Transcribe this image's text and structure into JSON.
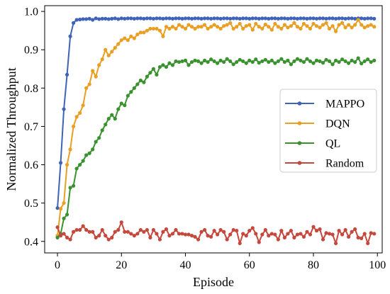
{
  "chart_data": {
    "type": "line",
    "title": "",
    "xlabel": "Episode",
    "ylabel": "Normalized Throughput",
    "xlim": [
      -4,
      101.5
    ],
    "ylim": [
      0.37,
      1.015
    ],
    "xticks": [
      0,
      20,
      40,
      60,
      80,
      100
    ],
    "yticks": [
      0.4,
      0.5,
      0.6,
      0.7,
      0.8,
      0.9,
      1.0
    ],
    "ytick_labels": [
      "0.4",
      "0.5",
      "0.6",
      "0.7",
      "0.8",
      "0.9",
      "1.0"
    ],
    "grid": false,
    "legend_position": "center-right",
    "x": [
      0,
      1,
      2,
      3,
      4,
      5,
      6,
      7,
      8,
      9,
      10,
      11,
      12,
      13,
      14,
      15,
      16,
      17,
      18,
      19,
      20,
      21,
      22,
      23,
      24,
      25,
      26,
      27,
      28,
      29,
      30,
      31,
      32,
      33,
      34,
      35,
      36,
      37,
      38,
      39,
      40,
      41,
      42,
      43,
      44,
      45,
      46,
      47,
      48,
      49,
      50,
      51,
      52,
      53,
      54,
      55,
      56,
      57,
      58,
      59,
      60,
      61,
      62,
      63,
      64,
      65,
      66,
      67,
      68,
      69,
      70,
      71,
      72,
      73,
      74,
      75,
      76,
      77,
      78,
      79,
      80,
      81,
      82,
      83,
      84,
      85,
      86,
      87,
      88,
      89,
      90,
      91,
      92,
      93,
      94,
      95,
      96,
      97,
      98,
      99
    ],
    "series": [
      {
        "name": "MAPPO",
        "color": "#3f63b8",
        "values": [
          0.487,
          0.605,
          0.745,
          0.835,
          0.935,
          0.97,
          0.978,
          0.979,
          0.98,
          0.98,
          0.981,
          0.978,
          0.982,
          0.98,
          0.981,
          0.981,
          0.98,
          0.981,
          0.982,
          0.98,
          0.982,
          0.981,
          0.982,
          0.982,
          0.981,
          0.982,
          0.982,
          0.981,
          0.982,
          0.982,
          0.981,
          0.982,
          0.982,
          0.981,
          0.982,
          0.982,
          0.981,
          0.982,
          0.982,
          0.981,
          0.982,
          0.982,
          0.981,
          0.982,
          0.982,
          0.981,
          0.982,
          0.982,
          0.981,
          0.982,
          0.982,
          0.981,
          0.982,
          0.982,
          0.981,
          0.982,
          0.982,
          0.981,
          0.982,
          0.982,
          0.981,
          0.982,
          0.982,
          0.981,
          0.982,
          0.982,
          0.981,
          0.982,
          0.982,
          0.981,
          0.982,
          0.982,
          0.981,
          0.982,
          0.982,
          0.981,
          0.982,
          0.982,
          0.981,
          0.982,
          0.982,
          0.981,
          0.982,
          0.982,
          0.981,
          0.982,
          0.982,
          0.981,
          0.982,
          0.982,
          0.981,
          0.982,
          0.982,
          0.981,
          0.982,
          0.982,
          0.981,
          0.982,
          0.982,
          0.981
        ]
      },
      {
        "name": "DQN",
        "color": "#e89f24",
        "values": [
          0.415,
          0.485,
          0.5,
          0.6,
          0.64,
          0.7,
          0.725,
          0.735,
          0.755,
          0.8,
          0.81,
          0.845,
          0.83,
          0.86,
          0.875,
          0.9,
          0.885,
          0.895,
          0.905,
          0.915,
          0.925,
          0.93,
          0.925,
          0.935,
          0.93,
          0.94,
          0.945,
          0.945,
          0.95,
          0.955,
          0.955,
          0.955,
          0.95,
          0.935,
          0.96,
          0.955,
          0.96,
          0.955,
          0.965,
          0.96,
          0.955,
          0.965,
          0.96,
          0.955,
          0.96,
          0.96,
          0.965,
          0.955,
          0.96,
          0.965,
          0.96,
          0.955,
          0.962,
          0.965,
          0.97,
          0.955,
          0.96,
          0.968,
          0.955,
          0.962,
          0.965,
          0.952,
          0.968,
          0.96,
          0.955,
          0.966,
          0.96,
          0.952,
          0.968,
          0.96,
          0.955,
          0.965,
          0.958,
          0.962,
          0.97,
          0.96,
          0.955,
          0.968,
          0.962,
          0.955,
          0.968,
          0.962,
          0.958,
          0.965,
          0.97,
          0.955,
          0.962,
          0.948,
          0.965,
          0.97,
          0.958,
          0.965,
          0.958,
          0.965,
          0.978,
          0.965,
          0.958,
          0.962,
          0.965,
          0.96
        ]
      },
      {
        "name": "QL",
        "color": "#3a922f",
        "values": [
          0.41,
          0.42,
          0.46,
          0.47,
          0.54,
          0.545,
          0.59,
          0.6,
          0.61,
          0.625,
          0.63,
          0.64,
          0.66,
          0.67,
          0.69,
          0.705,
          0.72,
          0.73,
          0.72,
          0.745,
          0.76,
          0.755,
          0.78,
          0.79,
          0.8,
          0.81,
          0.82,
          0.815,
          0.83,
          0.84,
          0.85,
          0.835,
          0.855,
          0.86,
          0.855,
          0.865,
          0.86,
          0.87,
          0.868,
          0.87,
          0.872,
          0.86,
          0.868,
          0.872,
          0.87,
          0.865,
          0.872,
          0.868,
          0.875,
          0.87,
          0.865,
          0.872,
          0.868,
          0.876,
          0.87,
          0.862,
          0.868,
          0.874,
          0.87,
          0.865,
          0.872,
          0.868,
          0.875,
          0.866,
          0.87,
          0.874,
          0.868,
          0.872,
          0.865,
          0.87,
          0.876,
          0.868,
          0.872,
          0.862,
          0.87,
          0.876,
          0.872,
          0.868,
          0.876,
          0.87,
          0.865,
          0.872,
          0.87,
          0.866,
          0.874,
          0.87,
          0.862,
          0.872,
          0.868,
          0.875,
          0.87,
          0.865,
          0.872,
          0.868,
          0.878,
          0.864,
          0.87,
          0.875,
          0.868,
          0.872
        ]
      },
      {
        "name": "Random",
        "color": "#c6473c",
        "values": [
          0.437,
          0.415,
          0.42,
          0.41,
          0.405,
          0.425,
          0.43,
          0.43,
          0.44,
          0.43,
          0.425,
          0.425,
          0.41,
          0.415,
          0.43,
          0.415,
          0.405,
          0.41,
          0.425,
          0.43,
          0.45,
          0.425,
          0.425,
          0.42,
          0.415,
          0.42,
          0.43,
          0.425,
          0.43,
          0.41,
          0.43,
          0.42,
          0.405,
          0.425,
          0.432,
          0.415,
          0.42,
          0.43,
          0.42,
          0.42,
          0.418,
          0.418,
          0.415,
          0.412,
          0.405,
          0.425,
          0.43,
          0.415,
          0.412,
          0.428,
          0.418,
          0.43,
          0.425,
          0.405,
          0.418,
          0.43,
          0.428,
          0.395,
          0.42,
          0.415,
          0.428,
          0.435,
          0.42,
          0.398,
          0.418,
          0.43,
          0.415,
          0.42,
          0.418,
          0.405,
          0.428,
          0.41,
          0.42,
          0.428,
          0.41,
          0.418,
          0.42,
          0.412,
          0.425,
          0.418,
          0.438,
          0.428,
          0.432,
          0.405,
          0.422,
          0.42,
          0.418,
          0.395,
          0.428,
          0.418,
          0.43,
          0.412,
          0.425,
          0.432,
          0.41,
          0.408,
          0.42,
          0.395,
          0.422,
          0.42
        ]
      }
    ]
  }
}
